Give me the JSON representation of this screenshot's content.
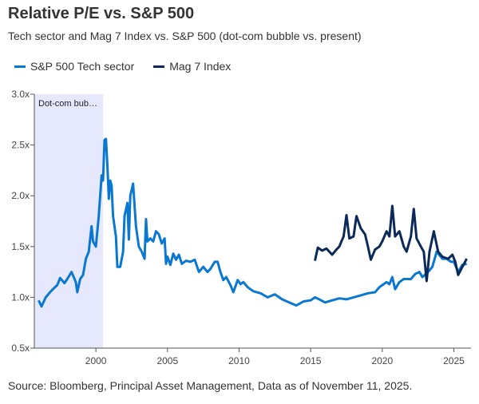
{
  "title": "Relative P/E vs. S&P 500",
  "subtitle": "Tech sector and Mag 7 Index vs. S&P 500 (dot-com bubble vs. present)",
  "source": "Source: Bloomberg, Principal Asset Management, Data as of November 11, 2025.",
  "chart_data": {
    "type": "line",
    "xlim": [
      1995.7,
      2026.2
    ],
    "ylim": [
      0.5,
      3.0
    ],
    "yticks": [
      0.5,
      1.0,
      1.5,
      2.0,
      2.5,
      3.0
    ],
    "ytick_labels": [
      "0.5x",
      "1.0x",
      "1.5x",
      "2.0x",
      "2.5x",
      "3.0x"
    ],
    "xticks": [
      2000,
      2005,
      2010,
      2015,
      2020,
      2025
    ],
    "xtick_labels": [
      "2000",
      "2005",
      "2010",
      "2015",
      "2020",
      "2025"
    ],
    "grid": false,
    "legend_position": "top-left",
    "annotation": {
      "label": "Dot-com bub…",
      "x_start": 1995.7,
      "x_end": 2000.5,
      "color": "#e6e8fd"
    },
    "series": [
      {
        "name": "S&P 500 Tech sector",
        "color": "#0a78d0",
        "x": [
          1996.0,
          1996.2,
          1996.5,
          1996.8,
          1997.0,
          1997.3,
          1997.5,
          1997.8,
          1998.0,
          1998.3,
          1998.6,
          1998.7,
          1998.9,
          1999.1,
          1999.3,
          1999.5,
          1999.7,
          1999.8,
          2000.0,
          2000.2,
          2000.4,
          2000.5,
          2000.6,
          2000.7,
          2000.8,
          2000.9,
          2001.0,
          2001.1,
          2001.2,
          2001.4,
          2001.5,
          2001.7,
          2001.9,
          2002.0,
          2002.2,
          2002.3,
          2002.4,
          2002.6,
          2002.8,
          2003.0,
          2003.2,
          2003.4,
          2003.5,
          2003.6,
          2003.8,
          2004.0,
          2004.2,
          2004.4,
          2004.6,
          2004.8,
          2004.9,
          2005.0,
          2005.2,
          2005.4,
          2005.6,
          2005.8,
          2006.0,
          2006.3,
          2006.6,
          2006.9,
          2007.2,
          2007.5,
          2007.8,
          2008.0,
          2008.3,
          2008.5,
          2008.7,
          2008.9,
          2009.1,
          2009.4,
          2009.6,
          2009.9,
          2010.1,
          2010.3,
          2010.6,
          2011.0,
          2011.5,
          2012.0,
          2012.5,
          2013.0,
          2013.5,
          2014.0,
          2014.5,
          2015.0,
          2015.3,
          2015.6,
          2016.0,
          2016.5,
          2017.0,
          2017.5,
          2018.0,
          2018.5,
          2019.0,
          2019.5,
          2019.8,
          2020.0,
          2020.3,
          2020.5,
          2020.7,
          2020.9,
          2021.2,
          2021.5,
          2022.0,
          2022.3,
          2022.6,
          2022.8,
          2023.2,
          2023.5,
          2023.8,
          2024.2,
          2024.5,
          2024.8,
          2025.0,
          2025.3,
          2025.6,
          2025.9
        ],
        "values": [
          0.97,
          0.91,
          1.0,
          1.05,
          1.08,
          1.12,
          1.19,
          1.14,
          1.18,
          1.25,
          1.15,
          1.05,
          1.18,
          1.22,
          1.38,
          1.45,
          1.7,
          1.55,
          1.5,
          1.8,
          2.2,
          2.15,
          2.55,
          2.56,
          2.3,
          1.97,
          2.15,
          2.1,
          1.8,
          1.6,
          1.3,
          1.3,
          1.45,
          1.8,
          1.93,
          1.57,
          2.0,
          2.12,
          1.7,
          1.5,
          1.45,
          1.38,
          1.77,
          1.55,
          1.58,
          1.55,
          1.65,
          1.62,
          1.53,
          1.58,
          1.33,
          1.4,
          1.32,
          1.43,
          1.37,
          1.42,
          1.33,
          1.36,
          1.35,
          1.37,
          1.25,
          1.3,
          1.25,
          1.28,
          1.35,
          1.35,
          1.25,
          1.17,
          1.2,
          1.12,
          1.05,
          1.17,
          1.13,
          1.15,
          1.1,
          1.06,
          1.04,
          1.0,
          1.03,
          0.98,
          0.95,
          0.92,
          0.96,
          0.97,
          1.0,
          0.98,
          0.95,
          0.97,
          0.99,
          0.98,
          1.0,
          1.02,
          1.04,
          1.05,
          1.1,
          1.12,
          1.15,
          1.13,
          1.2,
          1.08,
          1.15,
          1.18,
          1.18,
          1.23,
          1.25,
          1.2,
          1.25,
          1.3,
          1.45,
          1.38,
          1.38,
          1.35,
          1.35,
          1.25,
          1.32,
          1.33
        ]
      },
      {
        "name": "Mag 7 Index",
        "color": "#0b2a5a",
        "x": [
          2015.3,
          2015.5,
          2015.8,
          2016.1,
          2016.5,
          2016.8,
          2017.0,
          2017.3,
          2017.5,
          2017.7,
          2018.0,
          2018.2,
          2018.5,
          2018.8,
          2019.0,
          2019.2,
          2019.5,
          2019.8,
          2020.0,
          2020.3,
          2020.5,
          2020.7,
          2020.9,
          2021.2,
          2021.5,
          2021.7,
          2022.0,
          2022.2,
          2022.4,
          2022.7,
          2022.9,
          2023.1,
          2023.3,
          2023.6,
          2023.9,
          2024.2,
          2024.6,
          2024.9,
          2025.1,
          2025.3,
          2025.6,
          2025.9
        ],
        "values": [
          1.36,
          1.49,
          1.46,
          1.48,
          1.42,
          1.47,
          1.5,
          1.6,
          1.81,
          1.58,
          1.6,
          1.8,
          1.68,
          1.62,
          1.5,
          1.37,
          1.47,
          1.5,
          1.55,
          1.65,
          1.6,
          1.9,
          1.6,
          1.65,
          1.5,
          1.45,
          1.6,
          1.87,
          1.58,
          1.5,
          1.45,
          1.16,
          1.45,
          1.65,
          1.45,
          1.4,
          1.38,
          1.42,
          1.35,
          1.22,
          1.3,
          1.38
        ]
      }
    ]
  }
}
